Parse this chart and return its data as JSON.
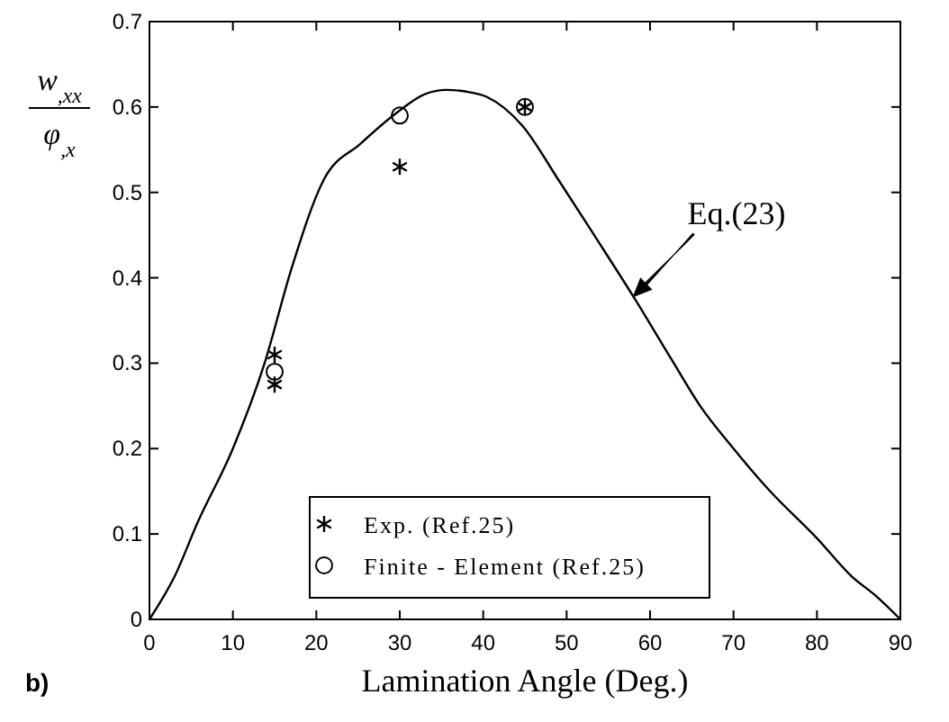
{
  "chart_data": {
    "type": "line",
    "xlabel": "Lamination Angle (Deg.)",
    "ylabel": "w$_{,xx}$ φ$_{,x}$",
    "xlim": [
      0,
      90
    ],
    "ylim": [
      0,
      0.7
    ],
    "xticks": [
      0,
      10,
      20,
      30,
      40,
      50,
      60,
      70,
      80,
      90
    ],
    "yticks": [
      0,
      0.1,
      0.2,
      0.3,
      0.4,
      0.5,
      0.6,
      0.7
    ],
    "grid": false,
    "legend": "bottom",
    "series": [
      {
        "color": "#000000",
        "marker": "none",
        "line_style": "solid",
        "x": [
          0,
          3,
          5.8,
          10,
          13.8,
          17,
          20.9,
          25.3,
          29.6,
          33,
          35.6,
          38,
          40.4,
          44.7,
          49,
          53.3,
          58,
          62.6,
          66,
          70,
          74.2,
          80,
          84.2,
          87,
          90
        ],
        "values": [
          0,
          0.05,
          0.114,
          0.2,
          0.3,
          0.41,
          0.515,
          0.557,
          0.593,
          0.615,
          0.62,
          0.618,
          0.612,
          0.578,
          0.515,
          0.45,
          0.378,
          0.304,
          0.25,
          0.2,
          0.152,
          0.095,
          0.05,
          0.028,
          0
        ]
      },
      {
        "name": "Exp. (Ref.25)",
        "type": "scatter",
        "color": "#000000",
        "marker": "cross",
        "x": [
          15,
          15,
          30,
          45
        ],
        "values": [
          0.31,
          0.275,
          0.53,
          0.6
        ]
      },
      {
        "name": "Finite - Element (Ref.25)",
        "type": "scatter",
        "color": "#000000",
        "marker": "circle",
        "x": [
          15,
          30,
          45
        ],
        "values": [
          0.29,
          0.59,
          0.6
        ]
      }
    ],
    "annotations": [
      {
        "text": "Eq.(23)",
        "x": 58,
        "y": 0.378
      },
      "b)"
    ]
  }
}
